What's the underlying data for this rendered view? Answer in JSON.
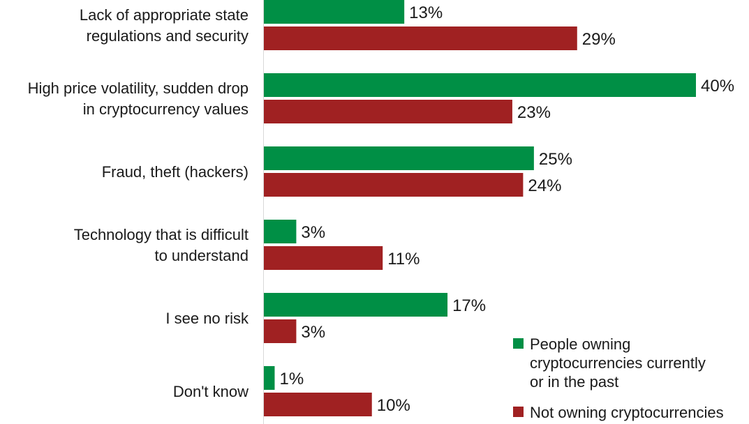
{
  "chart_data": {
    "type": "bar",
    "orientation": "horizontal",
    "categories": [
      "Lack of appropriate state\nregulations and security",
      "High price volatility, sudden drop\nin cryptocurrency values",
      "Fraud, theft (hackers)",
      "Technology that is difficult\nto understand",
      "I see no risk",
      "Don't know"
    ],
    "series": [
      {
        "name": "People owning\ncryptocurrencies currently\nor in the past",
        "values": [
          13,
          40,
          25,
          3,
          17,
          1
        ],
        "color": "#008f45"
      },
      {
        "name": "Not owning cryptocurrencies",
        "values": [
          29,
          23,
          24,
          11,
          3,
          10
        ],
        "color": "#a02122"
      }
    ],
    "value_suffix": "%",
    "xlim": [
      0,
      40
    ],
    "grid": false,
    "legend_position": "bottom-right"
  }
}
